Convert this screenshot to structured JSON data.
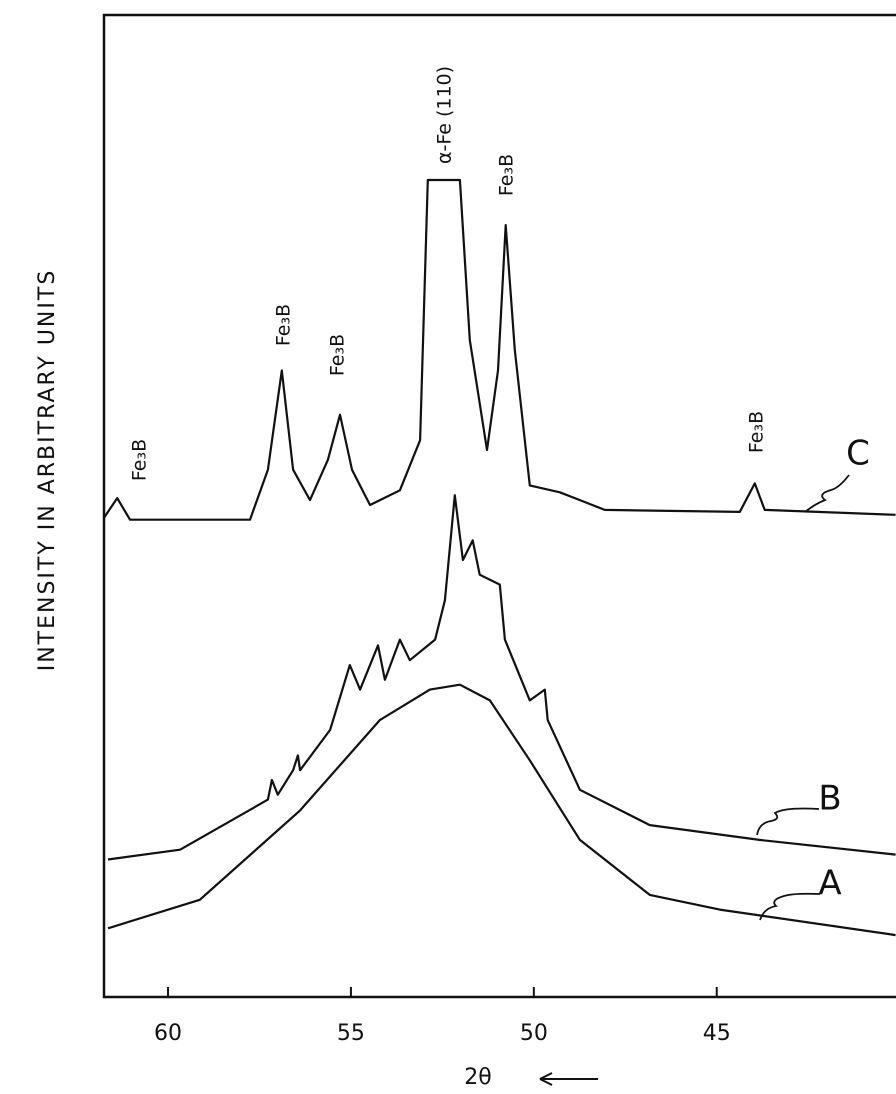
{
  "chart_data": {
    "type": "line",
    "ylabel": "INTENSITY IN ARBITRARY UNITS",
    "xlabel": "2θ",
    "xlim": [
      61.75,
      40.1
    ],
    "ylim": [
      0,
      100
    ],
    "xticks": [
      60,
      55,
      50,
      45
    ],
    "annotations": [
      "Fe₃B",
      "Fe₃B",
      "Fe₃B",
      "α-Fe (110)",
      "Fe₃B",
      "Fe₃B"
    ],
    "series": [
      {
        "name": "C",
        "color": "#111",
        "x": [
          61.75,
          61.39,
          61.04,
          57.76,
          57.27,
          56.89,
          56.58,
          56.12,
          55.63,
          55.3,
          54.97,
          54.48,
          53.66,
          53.11,
          52.9,
          52.02,
          51.75,
          51.28,
          50.98,
          50.77,
          50.52,
          50.11,
          49.29,
          48.74,
          48.06,
          44.37,
          43.96,
          43.69,
          40.11
        ],
        "values": [
          48.8,
          50.8,
          48.6,
          48.6,
          53.7,
          63.8,
          53.7,
          50.6,
          54.7,
          59.3,
          53.7,
          50.1,
          51.6,
          56.7,
          83.2,
          83.2,
          66.9,
          55.7,
          63.8,
          78.6,
          65.9,
          52.1,
          51.4,
          50.6,
          49.6,
          49.4,
          52.3,
          49.6,
          49.1
        ]
      },
      {
        "name": "B",
        "color": "#111",
        "x": [
          61.64,
          59.67,
          57.27,
          57.16,
          57.0,
          56.58,
          56.45,
          56.39,
          55.57,
          55.03,
          54.75,
          54.26,
          54.07,
          53.66,
          53.39,
          52.7,
          52.43,
          52.16,
          51.94,
          51.67,
          51.48,
          50.93,
          50.79,
          50.11,
          49.7,
          49.62,
          48.74,
          46.83,
          43.83,
          40.11
        ],
        "values": [
          14.0,
          15.0,
          20.1,
          22.1,
          20.6,
          23.1,
          24.6,
          23.1,
          27.2,
          33.8,
          31.3,
          35.8,
          32.3,
          36.4,
          34.3,
          36.4,
          40.4,
          51.1,
          44.5,
          46.5,
          43.0,
          42.0,
          36.4,
          30.2,
          31.3,
          28.2,
          21.1,
          17.5,
          16.0,
          14.5
        ]
      },
      {
        "name": "A",
        "color": "#111",
        "x": [
          61.64,
          59.13,
          56.39,
          54.21,
          52.84,
          52.02,
          51.2,
          50.11,
          48.74,
          46.83,
          44.92,
          40.11
        ],
        "values": [
          7.0,
          9.9,
          19.0,
          28.2,
          31.3,
          31.8,
          30.2,
          24.1,
          16.0,
          10.4,
          8.9,
          6.3
        ]
      }
    ]
  }
}
